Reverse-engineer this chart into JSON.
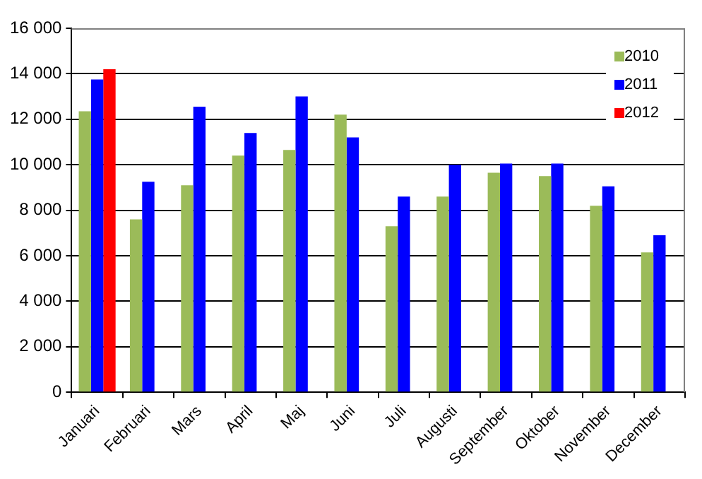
{
  "chart_data": {
    "type": "bar",
    "categories": [
      "Januari",
      "Februari",
      "Mars",
      "April",
      "Maj",
      "Juni",
      "Juli",
      "Augusti",
      "September",
      "Oktober",
      "November",
      "December"
    ],
    "series": [
      {
        "name": "2010",
        "color": "#9bbb59",
        "values": [
          12350,
          7600,
          9100,
          10400,
          10650,
          12200,
          7300,
          8600,
          9650,
          9500,
          8200,
          6150
        ]
      },
      {
        "name": "2011",
        "color": "#0000ff",
        "values": [
          13750,
          9250,
          12550,
          11400,
          13000,
          11200,
          8600,
          10000,
          10050,
          10050,
          9050,
          6900
        ]
      },
      {
        "name": "2012",
        "color": "#ff0000",
        "values": [
          14200,
          null,
          null,
          null,
          null,
          null,
          null,
          null,
          null,
          null,
          null,
          null
        ]
      }
    ],
    "ylim": [
      0,
      16000
    ],
    "yticks": [
      0,
      {
        "value": 2000,
        "label": "2 000"
      },
      {
        "value": 4000,
        "label": "4 000"
      },
      {
        "value": 6000,
        "label": "6 000"
      },
      {
        "value": 8000,
        "label": "8 000"
      },
      {
        "value": 10000,
        "label": "10 000"
      },
      {
        "value": 12000,
        "label": "12 000"
      },
      {
        "value": 14000,
        "label": "14 000"
      },
      {
        "value": 16000,
        "label": "16 000"
      }
    ],
    "grid": "y",
    "legend": "top right"
  }
}
